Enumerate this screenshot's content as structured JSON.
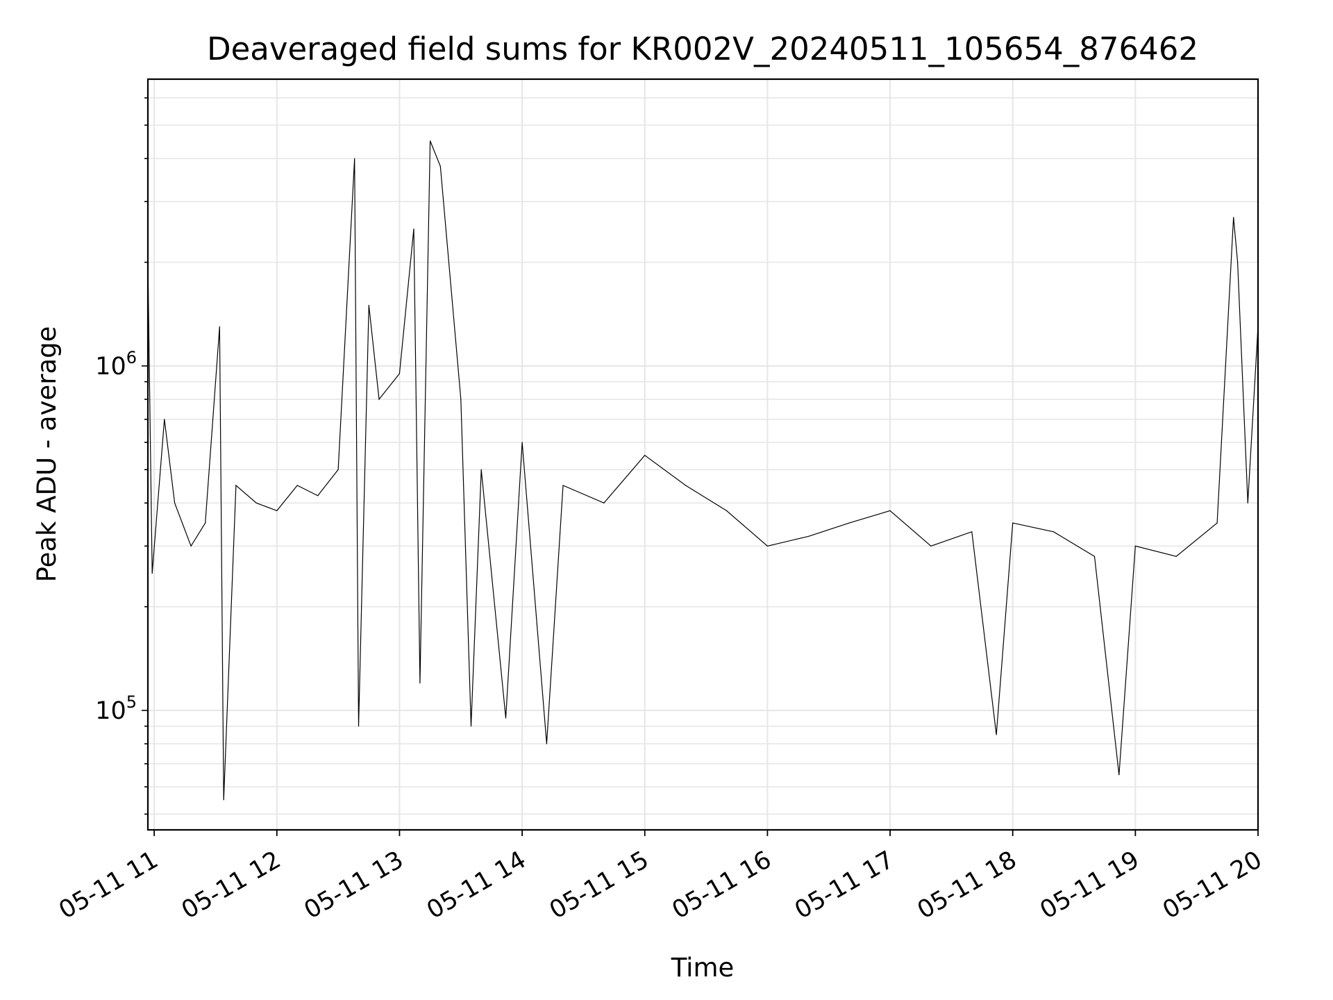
{
  "chart_data": {
    "type": "line",
    "title": "Deaveraged field sums for KR002V_20240511_105654_876462",
    "xlabel": "Time",
    "ylabel": "Peak ADU - average",
    "yscale": "log",
    "ylim": [
      45000,
      6800000
    ],
    "xlim": [
      "2024-05-11 10:56:54",
      "2024-05-11 20:00:00"
    ],
    "grid": true,
    "line_color": "#000000",
    "grid_color": "#e6e6e6",
    "x_ticks": [
      {
        "value": "2024-05-11 11:00",
        "label": "05-11 11"
      },
      {
        "value": "2024-05-11 12:00",
        "label": "05-11 12"
      },
      {
        "value": "2024-05-11 13:00",
        "label": "05-11 13"
      },
      {
        "value": "2024-05-11 14:00",
        "label": "05-11 14"
      },
      {
        "value": "2024-05-11 15:00",
        "label": "05-11 15"
      },
      {
        "value": "2024-05-11 16:00",
        "label": "05-11 16"
      },
      {
        "value": "2024-05-11 17:00",
        "label": "05-11 17"
      },
      {
        "value": "2024-05-11 18:00",
        "label": "05-11 18"
      },
      {
        "value": "2024-05-11 19:00",
        "label": "05-11 19"
      },
      {
        "value": "2024-05-11 20:00",
        "label": "05-11 20"
      }
    ],
    "y_ticks": [
      {
        "value": 100000,
        "base": "10",
        "exp": "5"
      },
      {
        "value": 1000000,
        "base": "10",
        "exp": "6"
      }
    ],
    "series": [
      {
        "x": [
          "2024-05-11 10:57",
          "2024-05-11 10:59",
          "2024-05-11 11:05",
          "2024-05-11 11:10",
          "2024-05-11 11:18",
          "2024-05-11 11:25",
          "2024-05-11 11:32",
          "2024-05-11 11:34",
          "2024-05-11 11:40",
          "2024-05-11 11:50",
          "2024-05-11 12:00",
          "2024-05-11 12:10",
          "2024-05-11 12:20",
          "2024-05-11 12:30",
          "2024-05-11 12:38",
          "2024-05-11 12:40",
          "2024-05-11 12:45",
          "2024-05-11 12:50",
          "2024-05-11 13:00",
          "2024-05-11 13:07",
          "2024-05-11 13:10",
          "2024-05-11 13:15",
          "2024-05-11 13:20",
          "2024-05-11 13:30",
          "2024-05-11 13:35",
          "2024-05-11 13:40",
          "2024-05-11 13:52",
          "2024-05-11 14:00",
          "2024-05-11 14:12",
          "2024-05-11 14:20",
          "2024-05-11 14:40",
          "2024-05-11 15:00",
          "2024-05-11 15:20",
          "2024-05-11 15:40",
          "2024-05-11 16:00",
          "2024-05-11 16:20",
          "2024-05-11 16:40",
          "2024-05-11 17:00",
          "2024-05-11 17:20",
          "2024-05-11 17:40",
          "2024-05-11 17:52",
          "2024-05-11 18:00",
          "2024-05-11 18:20",
          "2024-05-11 18:40",
          "2024-05-11 18:52",
          "2024-05-11 19:00",
          "2024-05-11 19:20",
          "2024-05-11 19:40",
          "2024-05-11 19:48",
          "2024-05-11 19:50",
          "2024-05-11 19:55",
          "2024-05-11 20:00"
        ],
        "y": [
          1800000,
          250000,
          700000,
          400000,
          300000,
          350000,
          1300000,
          55000,
          450000,
          400000,
          380000,
          450000,
          420000,
          500000,
          4000000,
          90000,
          1500000,
          800000,
          950000,
          2500000,
          120000,
          4500000,
          3800000,
          800000,
          90000,
          500000,
          95000,
          600000,
          80000,
          450000,
          400000,
          550000,
          450000,
          380000,
          300000,
          320000,
          350000,
          380000,
          300000,
          330000,
          85000,
          350000,
          330000,
          280000,
          65000,
          300000,
          280000,
          350000,
          2700000,
          2000000,
          400000,
          1300000
        ]
      }
    ]
  }
}
